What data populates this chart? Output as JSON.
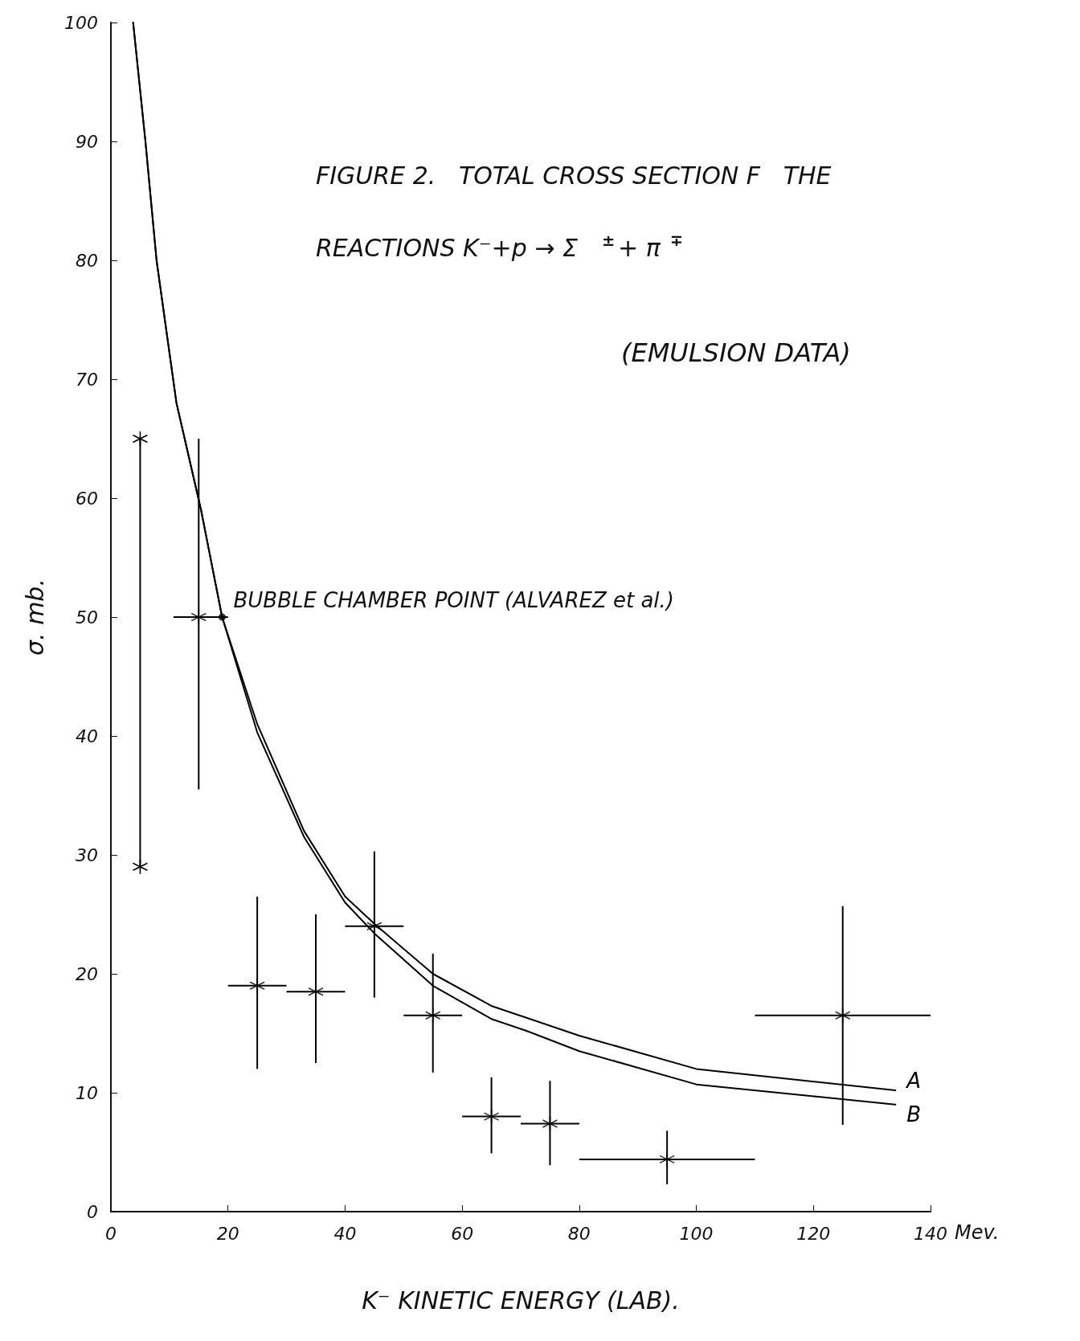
{
  "chart_data": {
    "type": "scatter",
    "title": "FIGURE 2.   TOTAL CROSS SECTION F   THE REACTIONS K⁻+p → Σ$^{±}$+ π$^{∓}$",
    "subtitle": "(EMULSION DATA)",
    "xlabel": "K⁻ KINETIC ENERGY (LAB).",
    "ylabel": "σ. mb.",
    "annotations": [
      {
        "text": "BUBBLE CHAMBER POINT (ALVAREZ et al.)",
        "x": 19,
        "y": 50
      },
      "Mev."
    ],
    "xlim": [
      0,
      140
    ],
    "xticks": [
      0,
      20,
      40,
      60,
      80,
      100,
      120,
      140
    ],
    "ylim": [
      0,
      100
    ],
    "yticks": [
      0,
      10,
      20,
      30,
      40,
      50,
      60,
      70,
      80,
      90,
      100
    ],
    "grid": false,
    "legend": false,
    "series": [
      {
        "color": "#000000",
        "marker": "cross",
        "x": [
          15,
          25,
          35,
          45,
          55,
          65,
          75,
          95,
          125
        ],
        "values": [
          50,
          19,
          18.5,
          24,
          16.5,
          8,
          7.4,
          4.4,
          16.5
        ],
        "errors": [
          [
            35.5,
            65
          ],
          [
            12,
            26.5
          ],
          [
            12.5,
            25
          ],
          [
            18,
            30.3
          ],
          [
            11.7,
            21.7
          ],
          [
            4.9,
            11.3
          ],
          [
            3.9,
            11
          ],
          [
            2.3,
            6.8
          ],
          [
            7.3,
            25.7
          ]
        ],
        "xerrors": [
          [
            10.7,
            20
          ],
          [
            20,
            30
          ],
          [
            30,
            40
          ],
          [
            40,
            50
          ],
          [
            50,
            60
          ],
          [
            60,
            70
          ],
          [
            70,
            80
          ],
          [
            80,
            110
          ],
          [
            110,
            140
          ]
        ]
      },
      {
        "color": "#000000",
        "marker": "circle",
        "x": [
          19
        ],
        "values": [
          50
        ]
      },
      {
        "type": "line",
        "color": "#000000",
        "marker": "cross",
        "x": [
          5,
          5
        ],
        "values": [
          65,
          29
        ]
      },
      {
        "type": "line",
        "name": "A",
        "color": "#000000",
        "marker": "none",
        "x": [
          3.8,
          5.9,
          7.8,
          11.2,
          15.4,
          19,
          25,
          33,
          40,
          45,
          55,
          65,
          71,
          80,
          100,
          134
        ],
        "values": [
          100,
          90,
          80,
          68,
          59,
          50,
          41,
          32,
          26.5,
          24.2,
          20,
          17.3,
          16.3,
          14.8,
          12,
          10.2
        ]
      },
      {
        "type": "line",
        "name": "B",
        "color": "#000000",
        "marker": "none",
        "x": [
          3.8,
          5.9,
          7.8,
          11.2,
          15.4,
          19,
          25,
          33,
          40,
          45,
          55,
          65,
          71,
          80,
          100,
          134
        ],
        "values": [
          100,
          90,
          80,
          68,
          59,
          50,
          40.3,
          31.5,
          26,
          23.4,
          19,
          16.2,
          15.2,
          13.5,
          10.7,
          9
        ]
      }
    ]
  }
}
